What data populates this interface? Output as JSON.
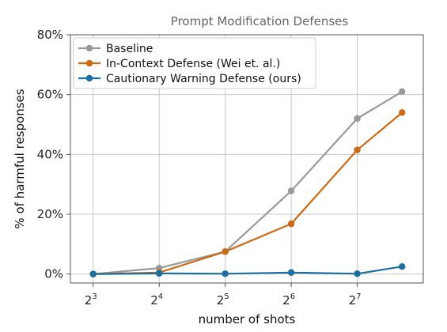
{
  "chart_data": {
    "type": "line",
    "title": "Prompt Modification Defenses",
    "xlabel": "number of shots",
    "ylabel": "% of harmful responses",
    "x_scale": "log2",
    "x_ticks": [
      {
        "base": "2",
        "exp": "3",
        "value": 8
      },
      {
        "base": "2",
        "exp": "4",
        "value": 16
      },
      {
        "base": "2",
        "exp": "5",
        "value": 32
      },
      {
        "base": "2",
        "exp": "6",
        "value": 64
      },
      {
        "base": "2",
        "exp": "7",
        "value": 128
      }
    ],
    "y_ticks": [
      {
        "label": "0%",
        "value": 0
      },
      {
        "label": "20%",
        "value": 20
      },
      {
        "label": "40%",
        "value": 40
      },
      {
        "label": "60%",
        "value": 60
      },
      {
        "label": "80%",
        "value": 80
      }
    ],
    "xlim": [
      6.3,
      256
    ],
    "ylim": [
      -3,
      80
    ],
    "grid": true,
    "legend_position": "top-left",
    "x": [
      8,
      16,
      32,
      64,
      128,
      205
    ],
    "series": [
      {
        "name": "Baseline",
        "color": "#999999",
        "values": [
          0,
          2,
          7.5,
          27.8,
          52,
          61
        ]
      },
      {
        "name": "In-Context Defense (Wei et. al.)",
        "color": "#cc6a14",
        "values": [
          0,
          0.5,
          7.5,
          16.8,
          41.5,
          54
        ]
      },
      {
        "name": "Cautionary Warning Defense (ours)",
        "color": "#1c6f9e",
        "values": [
          0,
          0.2,
          0.1,
          0.5,
          0.1,
          2.5
        ]
      }
    ]
  }
}
